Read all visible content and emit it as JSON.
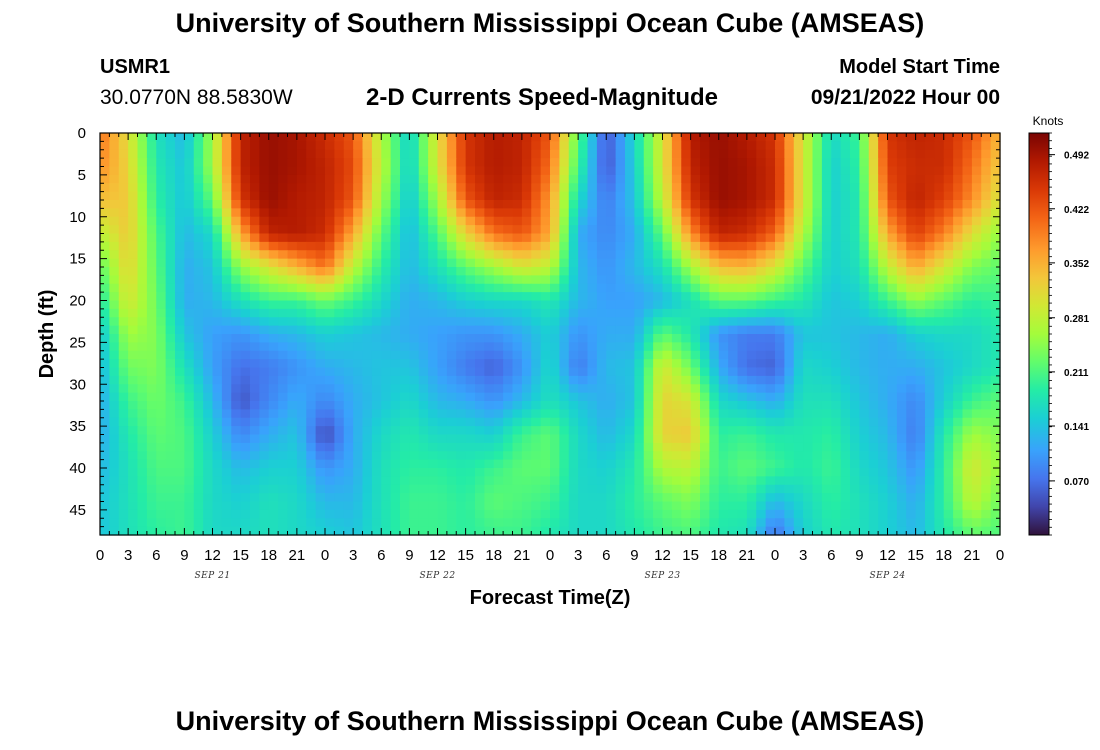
{
  "header": {
    "title": "University of Southern Mississippi Ocean Cube (AMSEAS)",
    "station": "USMR1",
    "coords": "30.0770N  88.5830W",
    "subtitle": "2-D Currents Speed-Magnitude",
    "model_start_label": "Model Start Time",
    "model_start_value": "09/21/2022 Hour 00"
  },
  "footer": {
    "title": "University of Southern Mississippi Ocean Cube (AMSEAS)"
  },
  "chart_data": {
    "type": "heatmap",
    "title": "2-D Currents Speed-Magnitude",
    "xlabel": "Forecast Time(Z)",
    "ylabel": "Depth (ft)",
    "xlim": [
      0,
      96
    ],
    "ylim": [
      0,
      48
    ],
    "x_tick_values": [
      0,
      3,
      6,
      9,
      12,
      15,
      18,
      21,
      24,
      27,
      30,
      33,
      36,
      39,
      42,
      45,
      48,
      51,
      54,
      57,
      60,
      63,
      66,
      69,
      72,
      75,
      78,
      81,
      84,
      87,
      90,
      93,
      96
    ],
    "x_tick_labels": [
      "0",
      "3",
      "6",
      "9",
      "12",
      "15",
      "18",
      "21",
      "0",
      "3",
      "6",
      "9",
      "12",
      "15",
      "18",
      "21",
      "0",
      "3",
      "6",
      "9",
      "12",
      "15",
      "18",
      "21",
      "0",
      "3",
      "6",
      "9",
      "12",
      "15",
      "18",
      "21",
      "0"
    ],
    "date_labels": [
      {
        "x": 12,
        "text": "SEP 21"
      },
      {
        "x": 36,
        "text": "SEP 22"
      },
      {
        "x": 60,
        "text": "SEP 23"
      },
      {
        "x": 84,
        "text": "SEP 24"
      }
    ],
    "y_tick_values": [
      0,
      5,
      10,
      15,
      20,
      25,
      30,
      35,
      40,
      45
    ],
    "y_tick_labels": [
      "0",
      "5",
      "10",
      "15",
      "20",
      "25",
      "30",
      "35",
      "40",
      "45"
    ],
    "colorbar": {
      "unit": "Knots",
      "range": [
        0.0,
        0.52
      ],
      "tick_values": [
        0.492,
        0.422,
        0.352,
        0.281,
        0.211,
        0.141,
        0.07
      ],
      "tick_labels": [
        "0.492",
        "0.422",
        "0.352",
        "0.281",
        "0.211",
        "0.141",
        "0.070"
      ]
    },
    "depths_ft": [
      0,
      4,
      8,
      12,
      16,
      20,
      24,
      28,
      32,
      36,
      40,
      44,
      48
    ],
    "times_h": [
      0,
      3,
      6,
      9,
      12,
      15,
      18,
      21,
      24,
      27,
      30,
      33,
      36,
      39,
      42,
      45,
      48,
      51,
      54,
      57,
      60,
      63,
      66,
      69,
      72,
      75,
      78,
      81,
      84,
      87,
      90,
      93,
      96
    ],
    "speed_knots": [
      [
        0.4,
        0.31,
        0.17,
        0.13,
        0.26,
        0.47,
        0.5,
        0.49,
        0.46,
        0.42,
        0.27,
        0.15,
        0.31,
        0.45,
        0.48,
        0.47,
        0.42,
        0.22,
        0.05,
        0.16,
        0.3,
        0.48,
        0.5,
        0.48,
        0.45,
        0.3,
        0.16,
        0.2,
        0.45,
        0.47,
        0.46,
        0.42,
        0.35
      ],
      [
        0.38,
        0.32,
        0.18,
        0.14,
        0.26,
        0.47,
        0.5,
        0.49,
        0.47,
        0.43,
        0.28,
        0.15,
        0.3,
        0.45,
        0.48,
        0.47,
        0.4,
        0.2,
        0.05,
        0.15,
        0.3,
        0.47,
        0.5,
        0.49,
        0.46,
        0.3,
        0.15,
        0.19,
        0.44,
        0.46,
        0.46,
        0.4,
        0.33
      ],
      [
        0.34,
        0.33,
        0.19,
        0.14,
        0.22,
        0.45,
        0.5,
        0.48,
        0.47,
        0.42,
        0.26,
        0.14,
        0.26,
        0.42,
        0.47,
        0.46,
        0.37,
        0.16,
        0.08,
        0.14,
        0.28,
        0.45,
        0.5,
        0.49,
        0.46,
        0.3,
        0.15,
        0.18,
        0.42,
        0.47,
        0.44,
        0.38,
        0.3
      ],
      [
        0.28,
        0.33,
        0.21,
        0.13,
        0.16,
        0.36,
        0.47,
        0.48,
        0.46,
        0.36,
        0.22,
        0.13,
        0.21,
        0.32,
        0.4,
        0.42,
        0.36,
        0.12,
        0.09,
        0.12,
        0.22,
        0.38,
        0.47,
        0.46,
        0.41,
        0.27,
        0.15,
        0.18,
        0.36,
        0.44,
        0.39,
        0.31,
        0.25
      ],
      [
        0.22,
        0.32,
        0.22,
        0.12,
        0.14,
        0.25,
        0.3,
        0.35,
        0.4,
        0.28,
        0.19,
        0.13,
        0.17,
        0.22,
        0.26,
        0.3,
        0.28,
        0.13,
        0.1,
        0.13,
        0.17,
        0.26,
        0.34,
        0.35,
        0.3,
        0.22,
        0.15,
        0.17,
        0.28,
        0.36,
        0.3,
        0.24,
        0.22
      ],
      [
        0.18,
        0.3,
        0.23,
        0.12,
        0.13,
        0.17,
        0.2,
        0.2,
        0.23,
        0.2,
        0.16,
        0.12,
        0.13,
        0.15,
        0.16,
        0.16,
        0.18,
        0.13,
        0.11,
        0.11,
        0.13,
        0.17,
        0.22,
        0.22,
        0.2,
        0.18,
        0.14,
        0.15,
        0.2,
        0.25,
        0.22,
        0.19,
        0.2
      ],
      [
        0.14,
        0.26,
        0.24,
        0.14,
        0.11,
        0.1,
        0.12,
        0.13,
        0.15,
        0.14,
        0.13,
        0.12,
        0.11,
        0.1,
        0.1,
        0.12,
        0.15,
        0.1,
        0.12,
        0.12,
        0.22,
        0.18,
        0.1,
        0.08,
        0.08,
        0.14,
        0.14,
        0.13,
        0.12,
        0.15,
        0.16,
        0.16,
        0.18
      ],
      [
        0.13,
        0.23,
        0.24,
        0.17,
        0.11,
        0.07,
        0.08,
        0.1,
        0.12,
        0.13,
        0.14,
        0.14,
        0.11,
        0.08,
        0.06,
        0.1,
        0.16,
        0.08,
        0.13,
        0.14,
        0.3,
        0.23,
        0.12,
        0.07,
        0.06,
        0.16,
        0.15,
        0.13,
        0.12,
        0.12,
        0.14,
        0.16,
        0.18
      ],
      [
        0.12,
        0.2,
        0.23,
        0.2,
        0.13,
        0.05,
        0.09,
        0.12,
        0.09,
        0.12,
        0.14,
        0.16,
        0.13,
        0.12,
        0.1,
        0.13,
        0.17,
        0.14,
        0.12,
        0.14,
        0.32,
        0.3,
        0.16,
        0.14,
        0.12,
        0.17,
        0.17,
        0.14,
        0.12,
        0.09,
        0.15,
        0.2,
        0.22
      ],
      [
        0.12,
        0.18,
        0.22,
        0.21,
        0.15,
        0.09,
        0.12,
        0.14,
        0.04,
        0.12,
        0.16,
        0.18,
        0.16,
        0.16,
        0.15,
        0.2,
        0.22,
        0.16,
        0.13,
        0.16,
        0.32,
        0.33,
        0.19,
        0.2,
        0.18,
        0.18,
        0.19,
        0.15,
        0.13,
        0.08,
        0.18,
        0.26,
        0.24
      ],
      [
        0.13,
        0.17,
        0.21,
        0.21,
        0.16,
        0.13,
        0.15,
        0.15,
        0.1,
        0.12,
        0.17,
        0.19,
        0.19,
        0.18,
        0.2,
        0.22,
        0.22,
        0.16,
        0.15,
        0.18,
        0.27,
        0.28,
        0.2,
        0.22,
        0.2,
        0.18,
        0.2,
        0.16,
        0.14,
        0.1,
        0.19,
        0.3,
        0.25
      ],
      [
        0.14,
        0.17,
        0.2,
        0.2,
        0.16,
        0.15,
        0.17,
        0.16,
        0.13,
        0.13,
        0.17,
        0.2,
        0.2,
        0.19,
        0.22,
        0.21,
        0.2,
        0.16,
        0.16,
        0.19,
        0.22,
        0.24,
        0.19,
        0.19,
        0.13,
        0.16,
        0.19,
        0.17,
        0.15,
        0.12,
        0.19,
        0.28,
        0.23
      ],
      [
        0.14,
        0.17,
        0.19,
        0.2,
        0.16,
        0.16,
        0.17,
        0.16,
        0.15,
        0.14,
        0.17,
        0.2,
        0.2,
        0.19,
        0.2,
        0.2,
        0.18,
        0.16,
        0.16,
        0.18,
        0.2,
        0.21,
        0.18,
        0.17,
        0.07,
        0.15,
        0.18,
        0.17,
        0.15,
        0.13,
        0.18,
        0.22,
        0.21
      ]
    ]
  }
}
